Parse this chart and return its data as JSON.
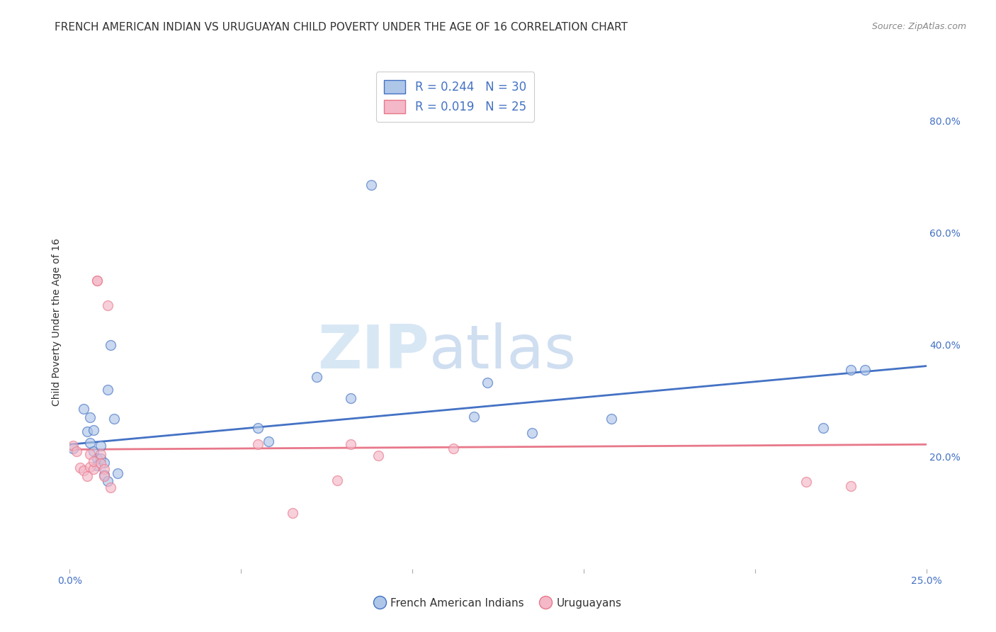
{
  "title": "FRENCH AMERICAN INDIAN VS URUGUAYAN CHILD POVERTY UNDER THE AGE OF 16 CORRELATION CHART",
  "source": "Source: ZipAtlas.com",
  "ylabel": "Child Poverty Under the Age of 16",
  "ylabel_right_ticks": [
    "20.0%",
    "40.0%",
    "60.0%",
    "80.0%"
  ],
  "ylabel_right_vals": [
    0.2,
    0.4,
    0.6,
    0.8
  ],
  "xmin": 0.0,
  "xmax": 0.25,
  "ymin": 0.0,
  "ymax": 0.88,
  "blue_color": "#aec6e8",
  "pink_color": "#f4b8c8",
  "blue_line_color": "#4472c4",
  "pink_line_color": "#e8788a",
  "legend_text_blue": "R = 0.244   N = 30",
  "legend_text_pink": "R = 0.019   N = 25",
  "legend_label_blue": "French American Indians",
  "legend_label_pink": "Uruguayans",
  "watermark_zip": "ZIP",
  "watermark_atlas": "atlas",
  "blue_scatter_x": [
    0.001,
    0.004,
    0.005,
    0.006,
    0.006,
    0.007,
    0.007,
    0.008,
    0.008,
    0.009,
    0.009,
    0.01,
    0.01,
    0.011,
    0.011,
    0.012,
    0.013,
    0.014,
    0.055,
    0.058,
    0.072,
    0.082,
    0.088,
    0.118,
    0.122,
    0.135,
    0.158,
    0.22,
    0.228,
    0.232
  ],
  "blue_scatter_y": [
    0.215,
    0.285,
    0.245,
    0.27,
    0.225,
    0.248,
    0.21,
    0.197,
    0.185,
    0.197,
    0.22,
    0.19,
    0.168,
    0.157,
    0.32,
    0.4,
    0.268,
    0.17,
    0.252,
    0.228,
    0.342,
    0.305,
    0.685,
    0.272,
    0.332,
    0.242,
    0.268,
    0.252,
    0.355,
    0.355
  ],
  "pink_scatter_x": [
    0.001,
    0.002,
    0.003,
    0.004,
    0.005,
    0.006,
    0.006,
    0.007,
    0.007,
    0.008,
    0.008,
    0.009,
    0.009,
    0.01,
    0.01,
    0.011,
    0.012,
    0.055,
    0.065,
    0.078,
    0.082,
    0.09,
    0.112,
    0.215,
    0.228
  ],
  "pink_scatter_y": [
    0.22,
    0.21,
    0.18,
    0.175,
    0.165,
    0.205,
    0.182,
    0.178,
    0.192,
    0.515,
    0.515,
    0.205,
    0.188,
    0.178,
    0.165,
    0.47,
    0.145,
    0.222,
    0.1,
    0.158,
    0.222,
    0.202,
    0.215,
    0.155,
    0.148
  ],
  "blue_line_x": [
    0.0,
    0.25
  ],
  "blue_line_y": [
    0.222,
    0.362
  ],
  "pink_line_x": [
    0.0,
    0.25
  ],
  "pink_line_y": [
    0.213,
    0.222
  ],
  "background_color": "#ffffff",
  "grid_color": "#cccccc",
  "title_color": "#333333",
  "axis_label_color": "#4472c4",
  "marker_size": 100,
  "marker_alpha": 0.65,
  "marker_linewidth": 1.0,
  "title_fontsize": 11,
  "source_fontsize": 9,
  "legend_fontsize": 12,
  "tick_fontsize": 10
}
